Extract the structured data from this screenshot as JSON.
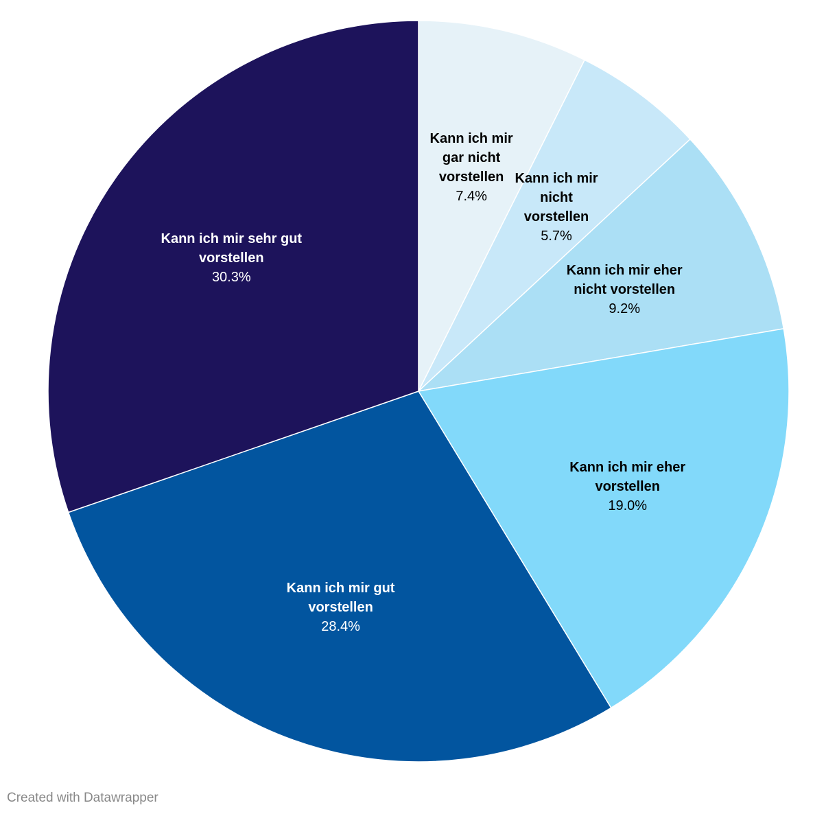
{
  "chart_data": {
    "type": "pie",
    "categories": [
      "Kann ich mir gar nicht vorstellen",
      "Kann ich mir nicht vorstellen",
      "Kann ich mir eher nicht vorstellen",
      "Kann ich mir eher vorstellen",
      "Kann ich mir gut vorstellen",
      "Kann ich mir sehr gut vorstellen"
    ],
    "values": [
      7.4,
      5.7,
      9.2,
      19.0,
      28.4,
      30.3
    ],
    "value_labels": [
      "7.4%",
      "5.7%",
      "9.2%",
      "19.0%",
      "28.4%",
      "30.3%"
    ],
    "colors": [
      "#e6f2f8",
      "#c8e8f9",
      "#abdff5",
      "#82d9fa",
      "#02559f",
      "#1d135b"
    ],
    "credit": "Created with Datawrapper"
  }
}
